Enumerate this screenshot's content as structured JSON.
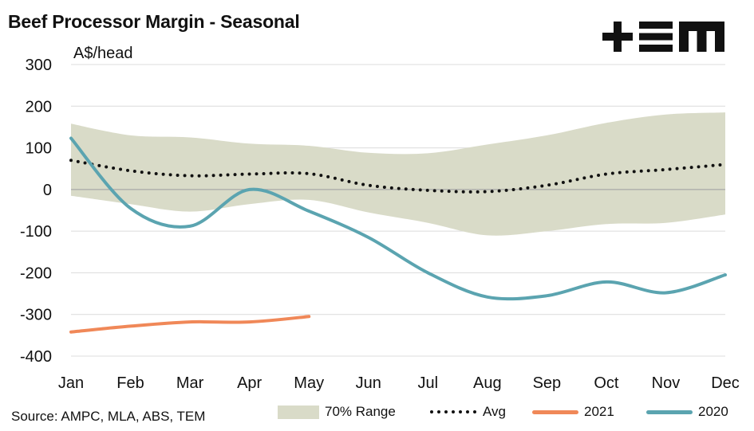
{
  "chart_data": {
    "type": "line",
    "title": "Beef Processor Margin - Seasonal",
    "ylabel": "A$/head",
    "source": "Source: AMPC, MLA, ABS, TEM",
    "categories": [
      "Jan",
      "Feb",
      "Mar",
      "Apr",
      "May",
      "Jun",
      "Jul",
      "Aug",
      "Sep",
      "Oct",
      "Nov",
      "Dec"
    ],
    "ylim": [
      -400,
      300
    ],
    "yticks": [
      "300",
      "200",
      "100",
      "0",
      "-100",
      "-200",
      "-300",
      "-400"
    ],
    "ytick_values": [
      300,
      200,
      100,
      0,
      -100,
      -200,
      -300,
      -400
    ],
    "grid": true,
    "legend_position": "bottom",
    "band": {
      "name": "70% Range",
      "color": "#d9dbc8",
      "upper": [
        158,
        130,
        125,
        110,
        105,
        88,
        87,
        108,
        130,
        160,
        180,
        185
      ],
      "lower": [
        -15,
        -35,
        -53,
        -35,
        -25,
        -55,
        -80,
        -110,
        -100,
        -83,
        -80,
        -60
      ]
    },
    "series": [
      {
        "name": "Avg",
        "color": "#111111",
        "style": "dotted",
        "values": [
          70,
          45,
          33,
          37,
          38,
          10,
          -2,
          -5,
          10,
          37,
          48,
          60
        ]
      },
      {
        "name": "2021",
        "color": "#f08858",
        "style": "solid",
        "values": [
          -342,
          -328,
          -318,
          -318,
          -305,
          null,
          null,
          null,
          null,
          null,
          null,
          null
        ]
      },
      {
        "name": "2020",
        "color": "#5ba4b0",
        "style": "solid",
        "values": [
          123,
          -45,
          -88,
          0,
          -52,
          -115,
          -200,
          -258,
          -255,
          -222,
          -248,
          -205
        ]
      }
    ]
  },
  "logo_text": "TEM"
}
